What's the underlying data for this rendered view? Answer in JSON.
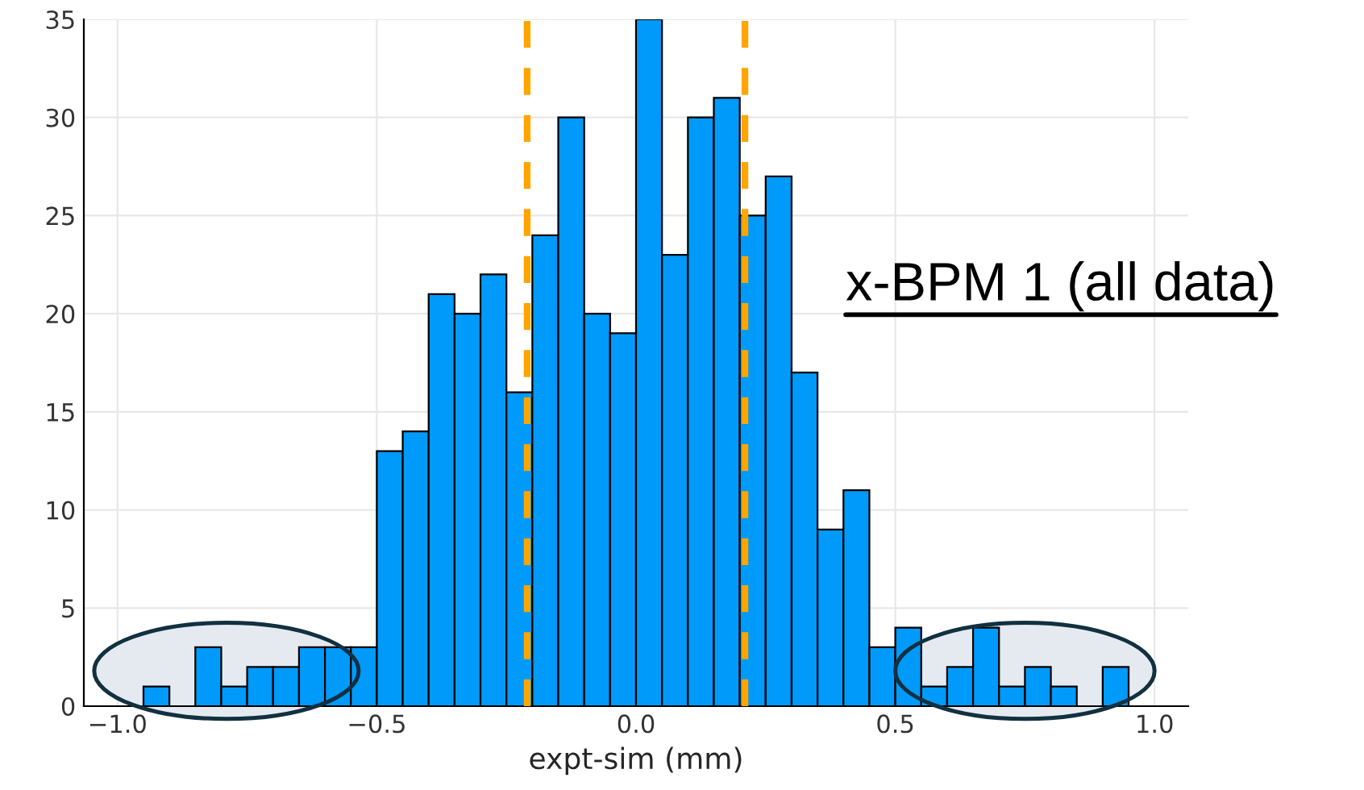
{
  "chart_data": {
    "type": "histogram",
    "xlabel": "expt-sim (mm)",
    "bins": [
      -0.95,
      -0.9,
      -0.85,
      -0.8,
      -0.75,
      -0.7,
      -0.65,
      -0.6,
      -0.55,
      -0.5,
      -0.45,
      -0.4,
      -0.35,
      -0.3,
      -0.25,
      -0.2,
      -0.15,
      -0.1,
      -0.05,
      0.0,
      0.05,
      0.1,
      0.15,
      0.2,
      0.25,
      0.3,
      0.35,
      0.4,
      0.45,
      0.5,
      0.55,
      0.6,
      0.65,
      0.7,
      0.75,
      0.8,
      0.85,
      0.9,
      0.95
    ],
    "values": [
      1,
      0,
      3,
      1,
      2,
      2,
      3,
      3,
      3,
      13,
      14,
      21,
      20,
      22,
      16,
      24,
      30,
      20,
      19,
      35,
      23,
      30,
      31,
      25,
      27,
      17,
      9,
      11,
      3,
      4,
      1,
      2,
      4,
      1,
      2,
      1,
      0,
      2
    ],
    "color": "#009afa",
    "xlim": [
      -1.065,
      1.065
    ],
    "xticks": [
      {
        "value": -1.0,
        "label": "−1.0"
      },
      {
        "value": -0.5,
        "label": "−0.5"
      },
      {
        "value": 0.0,
        "label": "0.0"
      },
      0.5,
      {
        "value": 1.0,
        "label": "1.0"
      }
    ],
    "ylim": [
      0,
      35
    ],
    "yticks": [
      0,
      5,
      10,
      15,
      20,
      25,
      30,
      35
    ],
    "grid": true,
    "ref_lines": [
      {
        "axis": "x",
        "value": -0.21,
        "color": "#ffa500",
        "line_style": "dashed"
      },
      {
        "axis": "x",
        "value": 0.21,
        "color": "#ffa500",
        "line_style": "dashed"
      }
    ],
    "annotations": [
      "x-BPM 1 (all data)"
    ]
  }
}
